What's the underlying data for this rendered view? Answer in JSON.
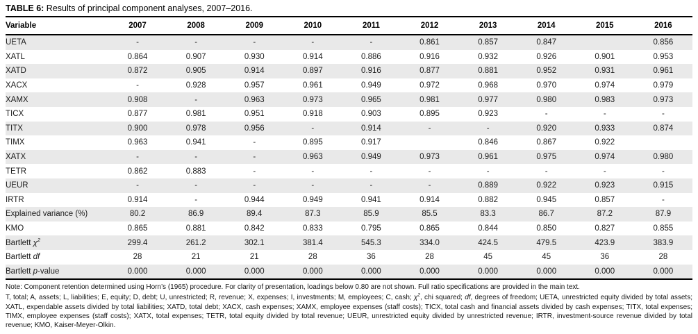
{
  "title": {
    "prefix": "TABLE 6:",
    "text": " Results of principal component analyses, 2007–2016."
  },
  "table": {
    "header": {
      "variable": "Variable",
      "years": [
        "2007",
        "2008",
        "2009",
        "2010",
        "2011",
        "2012",
        "2013",
        "2014",
        "2015",
        "2016"
      ]
    },
    "rows": [
      {
        "label": "UETA",
        "values": [
          "-",
          "-",
          "-",
          "-",
          "-",
          "0.861",
          "0.857",
          "0.847",
          "",
          "0.856"
        ]
      },
      {
        "label": "XATL",
        "values": [
          "0.864",
          "0.907",
          "0.930",
          "0.914",
          "0.886",
          "0.916",
          "0.932",
          "0.926",
          "0.901",
          "0.953"
        ]
      },
      {
        "label": "XATD",
        "values": [
          "0.872",
          "0.905",
          "0.914",
          "0.897",
          "0.916",
          "0.877",
          "0.881",
          "0.952",
          "0.931",
          "0.961"
        ]
      },
      {
        "label": "XACX",
        "values": [
          "-",
          "0.928",
          "0.957",
          "0.961",
          "0.949",
          "0.972",
          "0.968",
          "0.970",
          "0.974",
          "0.979"
        ]
      },
      {
        "label": "XAMX",
        "values": [
          "0.908",
          "-",
          "0.963",
          "0.973",
          "0.965",
          "0.981",
          "0.977",
          "0.980",
          "0.983",
          "0.973"
        ]
      },
      {
        "label": "TICX",
        "values": [
          "0.877",
          "0.981",
          "0.951",
          "0.918",
          "0.903",
          "0.895",
          "0.923",
          "-",
          "-",
          "-"
        ]
      },
      {
        "label": "TITX",
        "values": [
          "0.900",
          "0.978",
          "0.956",
          "-",
          "0.914",
          "-",
          "-",
          "0.920",
          "0.933",
          "0.874"
        ]
      },
      {
        "label": "TIMX",
        "values": [
          "0.963",
          "0.941",
          "-",
          "0.895",
          "0.917",
          "",
          "0.846",
          "0.867",
          "0.922",
          ""
        ]
      },
      {
        "label": "XATX",
        "values": [
          "-",
          "-",
          "-",
          "0.963",
          "0.949",
          "0.973",
          "0.961",
          "0.975",
          "0.974",
          "0.980"
        ]
      },
      {
        "label": "TETR",
        "values": [
          "0.862",
          "0.883",
          "-",
          "-",
          "-",
          "-",
          "-",
          "-",
          "-",
          "-"
        ]
      },
      {
        "label": "UEUR",
        "values": [
          "-",
          "-",
          "-",
          "-",
          "-",
          "-",
          "0.889",
          "0.922",
          "0.923",
          "0.915"
        ]
      },
      {
        "label": "IRTR",
        "values": [
          "0.914",
          "-",
          "0.944",
          "0.949",
          "0.941",
          "0.914",
          "0.882",
          "0.945",
          "0.857",
          "-"
        ]
      },
      {
        "label": "Explained variance (%)",
        "values": [
          "80.2",
          "86.9",
          "89.4",
          "87.3",
          "85.9",
          "85.5",
          "83.3",
          "86.7",
          "87.2",
          "87.9"
        ]
      },
      {
        "label": "KMO",
        "values": [
          "0.865",
          "0.881",
          "0.842",
          "0.833",
          "0.795",
          "0.865",
          "0.844",
          "0.850",
          "0.827",
          "0.855"
        ]
      },
      {
        "label": "Bartlett χ²",
        "label_parts": [
          {
            "text": "Bartlett "
          },
          {
            "text": "χ",
            "italic": true
          },
          {
            "text": "2",
            "italic": true,
            "sup": true
          }
        ],
        "values": [
          "299.4",
          "261.2",
          "302.1",
          "381.4",
          "545.3",
          "334.0",
          "424.5",
          "479.5",
          "423.9",
          "383.9"
        ]
      },
      {
        "label": "Bartlett df",
        "label_parts": [
          {
            "text": "Bartlett "
          },
          {
            "text": "df",
            "italic": true
          }
        ],
        "values": [
          "28",
          "21",
          "21",
          "28",
          "36",
          "28",
          "45",
          "45",
          "36",
          "28"
        ]
      },
      {
        "label": "Bartlett p-value",
        "label_parts": [
          {
            "text": "Bartlett "
          },
          {
            "text": "p",
            "italic": true
          },
          {
            "text": "-value"
          }
        ],
        "values": [
          "0.000",
          "0.000",
          "0.000",
          "0.000",
          "0.000",
          "0.000",
          "0.000",
          "0.000",
          "0.000",
          "0.000"
        ]
      }
    ]
  },
  "notes": {
    "note1": "Note: Component retention determined using Horn’s (1965) procedure. For clarity of presentation, loadings below 0.80 are not shown. Full ratio specifications are provided in the main text.",
    "note2_segments": [
      {
        "text": "T, total; A, assets; L, liabilities; E, equity; D, debt; U, unrestricted; R, revenue; X, expenses; I, investments; M, employees; C, cash; "
      },
      {
        "text": "χ",
        "italic": true
      },
      {
        "text": "2",
        "italic": true,
        "sup": true
      },
      {
        "text": ", chi squared; "
      },
      {
        "text": "df",
        "italic": true
      },
      {
        "text": ", degrees of freedom; UETA, unrestricted equity divided by total assets; XATL, expendable assets divided by total liabilities; XATD, total debt; XACX, cash expenses; XAMX, employee expenses (staff costs); TICX, total cash and financial assets divided by cash expenses; TITX, total expenses; TIMX, employee expenses (staff costs); XATX, total expenses; TETR, total equity divided by total revenue; UEUR, unrestricted equity divided by unrestricted revenue; IRTR, investment-source revenue divided by total revenue; KMO, Kaiser-Meyer-Olkin."
      }
    ]
  },
  "colors": {
    "stripe": "#e9e9e9",
    "rule": "#000000",
    "text": "#1b1b1b"
  }
}
